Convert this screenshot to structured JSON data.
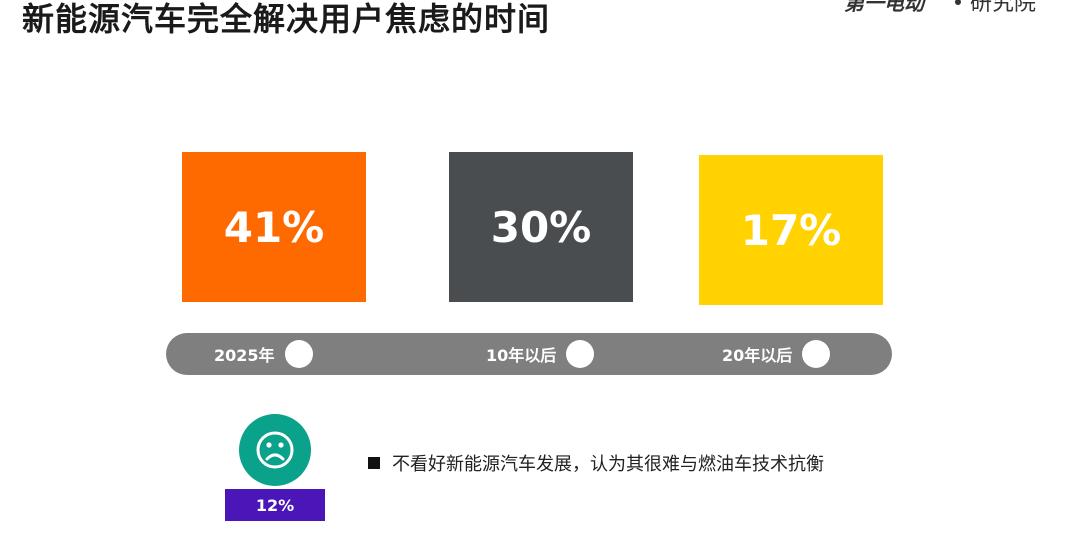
{
  "page": {
    "title": "新能源汽车完全解决用户焦虑的时间"
  },
  "brand": {
    "logo_text": "第一电动",
    "suffix": "研究院"
  },
  "chart_data": {
    "type": "bar",
    "categories": [
      "2025年",
      "10年以后",
      "20年以后"
    ],
    "values": [
      41,
      30,
      17
    ],
    "labels": [
      "41%",
      "30%",
      "17%"
    ],
    "colors": [
      "#ff6a00",
      "#4a4d4f",
      "#ffd200"
    ],
    "title": "新能源汽车完全解决用户焦虑的时间"
  },
  "note": {
    "percent": "12%",
    "text": "不看好新能源汽车发展，认为其很难与燃油车技术抗衡",
    "face_icon": "sad-face-icon",
    "circle_color": "#0aa28a",
    "badge_color": "#4a16b8"
  }
}
